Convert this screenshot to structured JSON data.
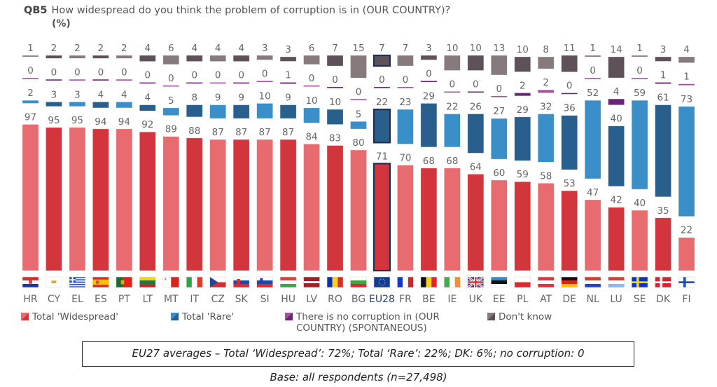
{
  "header": {
    "question_code": "QB5",
    "question_text": "How widespread do you think the problem of corruption is in (OUR COUNTRY)?",
    "unit": "(%)"
  },
  "chart_data": {
    "type": "bar",
    "stacked": true,
    "title": "QB5 How widespread do you think the problem of corruption is in (OUR COUNTRY)? (%)",
    "xlabel": "",
    "ylabel": "",
    "ylim": [
      0,
      100
    ],
    "highlight_category": "EU28",
    "categories": [
      "HR",
      "CY",
      "EL",
      "ES",
      "PT",
      "LT",
      "MT",
      "IT",
      "CZ",
      "SK",
      "SI",
      "HU",
      "LV",
      "RO",
      "BG",
      "EU28",
      "FR",
      "BE",
      "IE",
      "UK",
      "EE",
      "PL",
      "AT",
      "DE",
      "NL",
      "LU",
      "SE",
      "DK",
      "FI"
    ],
    "series": [
      {
        "name": "Total 'Widespread'",
        "color_light": "#e86b6f",
        "color_dark": "#d2363c",
        "values": [
          97,
          95,
          95,
          94,
          94,
          92,
          89,
          88,
          87,
          87,
          87,
          87,
          84,
          83,
          80,
          71,
          70,
          68,
          68,
          64,
          60,
          59,
          58,
          53,
          47,
          42,
          40,
          35,
          22
        ]
      },
      {
        "name": "Total 'Rare'",
        "color_light": "#3a8fc8",
        "color_dark": "#285f8c",
        "values": [
          2,
          3,
          3,
          4,
          4,
          4,
          5,
          8,
          9,
          9,
          10,
          9,
          10,
          10,
          5,
          22,
          23,
          29,
          22,
          26,
          27,
          29,
          32,
          36,
          52,
          40,
          59,
          61,
          73
        ]
      },
      {
        "name": "There is no corruption in (OUR COUNTRY) (SPONTANEOUS)",
        "color_light": "#a451a0",
        "color_dark": "#6b2378",
        "values": [
          0,
          0,
          0,
          0,
          0,
          0,
          0,
          0,
          0,
          0,
          0,
          1,
          0,
          0,
          0,
          0,
          0,
          0,
          0,
          0,
          0,
          2,
          2,
          0,
          0,
          4,
          0,
          1,
          1
        ]
      },
      {
        "name": "Don't know",
        "color_light": "#877a7c",
        "color_dark": "#5e5159",
        "values": [
          1,
          2,
          2,
          2,
          2,
          4,
          6,
          4,
          4,
          4,
          3,
          3,
          6,
          7,
          15,
          7,
          7,
          3,
          10,
          10,
          13,
          10,
          8,
          11,
          1,
          14,
          1,
          3,
          4
        ]
      }
    ],
    "legend_position": "bottom",
    "grid": false
  },
  "legend": {
    "items": [
      {
        "label": "Total 'Widespread'"
      },
      {
        "label": "Total 'Rare'"
      },
      {
        "label_line1": "There is no corruption in (OUR",
        "label_line2": "COUNTRY) (SPONTANEOUS)"
      },
      {
        "label": "Don't know"
      }
    ]
  },
  "footer": {
    "averages_note": "EU27 averages – Total ‘Widespread’: 72%; Total ‘Rare’: 22%; DK: 6%; no corruption: 0",
    "base_note": "Base: all respondents (n=27,498)"
  },
  "flags": {
    "HR": "croatia-flag-icon",
    "CY": "cyprus-flag-icon",
    "EL": "greece-flag-icon",
    "ES": "spain-flag-icon",
    "PT": "portugal-flag-icon",
    "LT": "lithuania-flag-icon",
    "MT": "malta-flag-icon",
    "IT": "italy-flag-icon",
    "CZ": "czechia-flag-icon",
    "SK": "slovakia-flag-icon",
    "SI": "slovenia-flag-icon",
    "HU": "hungary-flag-icon",
    "LV": "latvia-flag-icon",
    "RO": "romania-flag-icon",
    "BG": "bulgaria-flag-icon",
    "EU28": "eu-flag-icon",
    "FR": "france-flag-icon",
    "BE": "belgium-flag-icon",
    "IE": "ireland-flag-icon",
    "UK": "uk-flag-icon",
    "EE": "estonia-flag-icon",
    "PL": "poland-flag-icon",
    "AT": "austria-flag-icon",
    "DE": "germany-flag-icon",
    "NL": "netherlands-flag-icon",
    "LU": "luxembourg-flag-icon",
    "SE": "sweden-flag-icon",
    "DK": "denmark-flag-icon",
    "FI": "finland-flag-icon"
  }
}
